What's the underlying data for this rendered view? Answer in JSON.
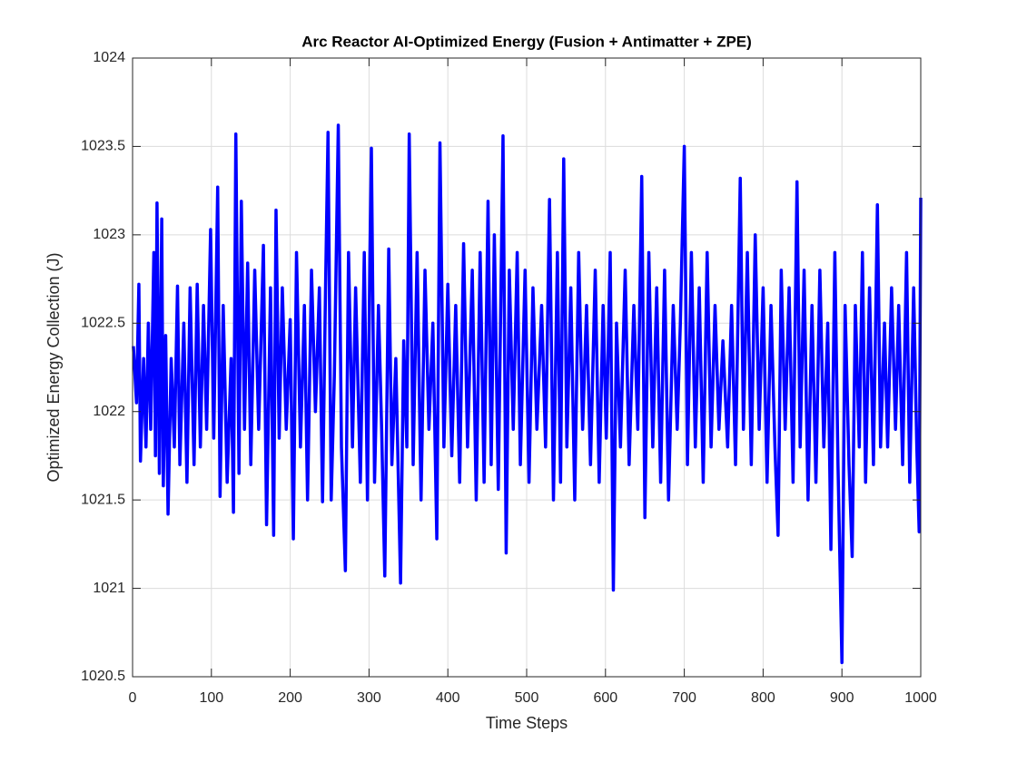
{
  "chart_data": {
    "type": "line",
    "title": "Arc Reactor AI-Optimized Energy (Fusion + Antimatter + ZPE)",
    "xlabel": "Time Steps",
    "ylabel": "Optimized Energy Collection (J)",
    "color": "#0000ff",
    "grid": true,
    "xlim": [
      0,
      1000
    ],
    "xticks": [
      0,
      100,
      200,
      300,
      400,
      500,
      600,
      700,
      800,
      900,
      1000
    ],
    "ylim": [
      1020.5,
      1024
    ],
    "yticks": [
      1020.5,
      1021,
      1021.5,
      1022,
      1022.5,
      1023,
      1023.5,
      1024
    ],
    "x": [
      1,
      5,
      8,
      10,
      14,
      17,
      20,
      23,
      27,
      29,
      31,
      34,
      37,
      39,
      42,
      45,
      49,
      53,
      57,
      60,
      65,
      69,
      73,
      78,
      82,
      86,
      90,
      94,
      99,
      103,
      108,
      111,
      115,
      120,
      125,
      128,
      131,
      135,
      138,
      142,
      146,
      150,
      155,
      160,
      166,
      170,
      175,
      179,
      182,
      186,
      190,
      195,
      200,
      204,
      208,
      213,
      218,
      222,
      227,
      232,
      237,
      241,
      245,
      248,
      252,
      256,
      261,
      265,
      270,
      274,
      279,
      283,
      289,
      294,
      298,
      301,
      303,
      307,
      312,
      316,
      320,
      325,
      329,
      334,
      340,
      344,
      348,
      351,
      356,
      361,
      366,
      371,
      376,
      381,
      386,
      390,
      395,
      400,
      405,
      410,
      415,
      420,
      425,
      431,
      436,
      441,
      446,
      451,
      455,
      459,
      464,
      470,
      474,
      478,
      483,
      488,
      492,
      498,
      503,
      508,
      513,
      519,
      524,
      529,
      534,
      539,
      543,
      547,
      551,
      556,
      561,
      566,
      571,
      576,
      581,
      587,
      592,
      597,
      601,
      606,
      610,
      614,
      619,
      625,
      630,
      636,
      641,
      646,
      650,
      655,
      660,
      665,
      670,
      675,
      680,
      686,
      691,
      695,
      700,
      704,
      709,
      714,
      719,
      724,
      729,
      734,
      739,
      744,
      749,
      755,
      760,
      765,
      771,
      775,
      780,
      785,
      790,
      795,
      800,
      805,
      810,
      815,
      819,
      823,
      828,
      833,
      838,
      843,
      847,
      852,
      857,
      862,
      867,
      872,
      877,
      882,
      886,
      891,
      895,
      900,
      904,
      909,
      913,
      917,
      922,
      926,
      930,
      935,
      940,
      945,
      949,
      954,
      958,
      963,
      968,
      972,
      977,
      982,
      986,
      991,
      995,
      998,
      1000
    ],
    "values": [
      1022.37,
      1022.05,
      1022.72,
      1021.72,
      1022.3,
      1021.8,
      1022.5,
      1021.9,
      1022.9,
      1021.75,
      1023.18,
      1021.65,
      1023.09,
      1021.58,
      1022.43,
      1021.42,
      1022.3,
      1021.8,
      1022.71,
      1021.7,
      1022.5,
      1021.6,
      1022.7,
      1021.7,
      1022.72,
      1021.8,
      1022.6,
      1021.9,
      1023.03,
      1021.85,
      1023.27,
      1021.52,
      1022.6,
      1021.6,
      1022.3,
      1021.43,
      1023.57,
      1021.65,
      1023.19,
      1021.9,
      1022.84,
      1021.7,
      1022.8,
      1021.9,
      1022.94,
      1021.36,
      1022.7,
      1021.3,
      1023.14,
      1021.85,
      1022.7,
      1021.9,
      1022.52,
      1021.28,
      1022.9,
      1021.8,
      1022.6,
      1021.5,
      1022.8,
      1022.0,
      1022.7,
      1021.49,
      1022.75,
      1023.58,
      1021.5,
      1022.2,
      1023.62,
      1021.8,
      1021.1,
      1022.9,
      1021.8,
      1022.7,
      1021.6,
      1022.9,
      1021.5,
      1022.85,
      1023.49,
      1021.6,
      1022.6,
      1021.9,
      1021.07,
      1022.92,
      1021.7,
      1022.3,
      1021.03,
      1022.4,
      1021.8,
      1023.57,
      1021.7,
      1022.9,
      1021.5,
      1022.8,
      1021.9,
      1022.5,
      1021.28,
      1023.52,
      1021.8,
      1022.72,
      1021.75,
      1022.6,
      1021.6,
      1022.95,
      1021.8,
      1022.8,
      1021.5,
      1022.9,
      1021.6,
      1023.19,
      1021.7,
      1023.0,
      1021.56,
      1023.56,
      1021.2,
      1022.8,
      1021.9,
      1022.9,
      1021.7,
      1022.8,
      1021.6,
      1022.7,
      1021.9,
      1022.6,
      1021.8,
      1023.2,
      1021.5,
      1022.9,
      1021.6,
      1023.43,
      1021.8,
      1022.7,
      1021.5,
      1022.9,
      1021.9,
      1022.6,
      1021.7,
      1022.8,
      1021.6,
      1022.6,
      1021.85,
      1022.9,
      1020.99,
      1022.5,
      1021.8,
      1022.8,
      1021.7,
      1022.6,
      1021.9,
      1023.33,
      1021.4,
      1022.9,
      1021.8,
      1022.7,
      1021.6,
      1022.8,
      1021.5,
      1022.6,
      1021.9,
      1022.5,
      1023.5,
      1021.7,
      1022.9,
      1021.8,
      1022.7,
      1021.6,
      1022.9,
      1021.8,
      1022.6,
      1021.9,
      1022.4,
      1021.8,
      1022.6,
      1021.7,
      1023.32,
      1021.9,
      1022.9,
      1021.7,
      1023.0,
      1021.9,
      1022.7,
      1021.6,
      1022.6,
      1021.8,
      1021.3,
      1022.8,
      1021.9,
      1022.7,
      1021.6,
      1023.3,
      1021.8,
      1022.8,
      1021.5,
      1022.6,
      1021.6,
      1022.8,
      1021.8,
      1022.5,
      1021.22,
      1022.9,
      1021.7,
      1020.58,
      1022.6,
      1021.7,
      1021.18,
      1022.6,
      1021.8,
      1022.9,
      1021.6,
      1022.7,
      1021.7,
      1023.17,
      1021.8,
      1022.5,
      1021.8,
      1022.7,
      1021.9,
      1022.6,
      1021.7,
      1022.9,
      1021.6,
      1022.7,
      1021.8,
      1021.32,
      1023.21
    ]
  }
}
